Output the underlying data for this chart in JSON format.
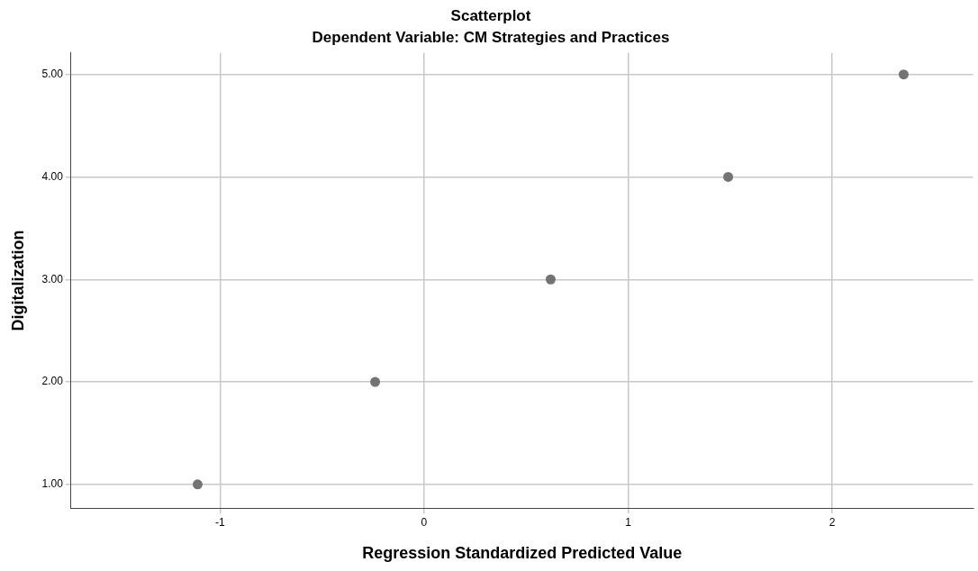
{
  "chart_data": {
    "type": "scatter",
    "title": "Scatterplot",
    "subtitle": "Dependent Variable: CM Strategies and Practices",
    "xlabel": "Regression Standardized Predicted Value",
    "ylabel": "Digitalization",
    "x": [
      -1.11,
      -0.24,
      0.62,
      1.49,
      2.35
    ],
    "series": [
      {
        "color": "#737373",
        "values": [
          1,
          2,
          3,
          4,
          5
        ]
      }
    ],
    "xlim": [
      -1.73,
      2.69
    ],
    "xticks": [
      -1,
      0,
      1,
      2
    ],
    "ylim": [
      0.77,
      5.21
    ],
    "yticks": [
      {
        "value": 1,
        "label": "1.00"
      },
      {
        "value": 2,
        "label": "2.00"
      },
      {
        "value": 3,
        "label": "3.00"
      },
      {
        "value": 4,
        "label": "4.00"
      },
      {
        "value": 5,
        "label": "5.00"
      }
    ],
    "grid": true,
    "legend": false,
    "marker": "circle"
  }
}
